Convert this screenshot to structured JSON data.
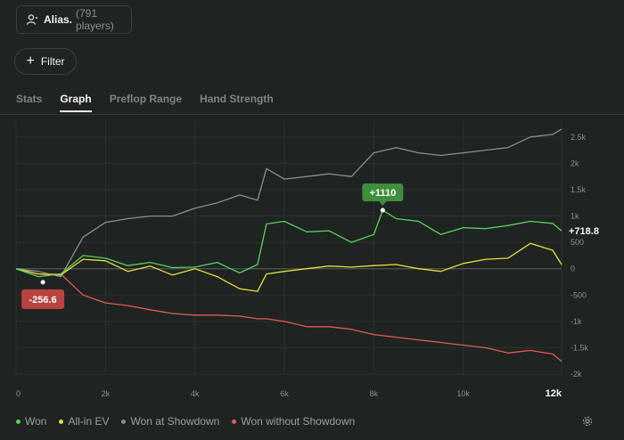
{
  "header": {
    "alias_name": "Alias.",
    "alias_count": "(791 players)",
    "filter_label": "Filter"
  },
  "tabs": [
    {
      "label": "Stats",
      "active": false
    },
    {
      "label": "Graph",
      "active": true
    },
    {
      "label": "Preflop Range",
      "active": false
    },
    {
      "label": "Hand Strength",
      "active": false
    }
  ],
  "legend": [
    {
      "label": "Won",
      "color": "#5ad25a"
    },
    {
      "label": "All-in EV",
      "color": "#e5df3a"
    },
    {
      "label": "Won at Showdown",
      "color": "#8a8f8d"
    },
    {
      "label": "Won without Showdown",
      "color": "#e05a55"
    }
  ],
  "chart_data": {
    "type": "line",
    "xlabel": "",
    "ylabel": "",
    "xlim": [
      0,
      12200
    ],
    "ylim": [
      -2000,
      2700
    ],
    "x_ticks": [
      {
        "value": 0,
        "label": "0"
      },
      {
        "value": 2000,
        "label": "2k"
      },
      {
        "value": 4000,
        "label": "4k"
      },
      {
        "value": 6000,
        "label": "6k"
      },
      {
        "value": 8000,
        "label": "8k"
      },
      {
        "value": 10000,
        "label": "10k"
      },
      {
        "value": 12200,
        "label": "12k"
      }
    ],
    "y_ticks": [
      {
        "value": 2500,
        "label": "2.5k"
      },
      {
        "value": 2000,
        "label": "2k"
      },
      {
        "value": 1500,
        "label": "1.5k"
      },
      {
        "value": 1000,
        "label": "1k"
      },
      {
        "value": 500,
        "label": "500"
      },
      {
        "value": 0,
        "label": "0"
      },
      {
        "value": -500,
        "label": "-500"
      },
      {
        "value": -1000,
        "label": "-1k"
      },
      {
        "value": -1500,
        "label": "-1.5k"
      },
      {
        "value": -2000,
        "label": "-2k"
      }
    ],
    "grid": true,
    "legend_position": "bottom-left",
    "annotations": [
      {
        "label": "+1110",
        "x": 8200,
        "y": 1110,
        "color": "#3d8f3d"
      },
      {
        "label": "-256.6",
        "x": 600,
        "y": -256.6,
        "color": "#b8433f"
      },
      {
        "label": "+718.8",
        "x": 12200,
        "y": 718.8,
        "color": "transparent"
      }
    ],
    "series": [
      {
        "name": "Won",
        "color": "#5ad25a",
        "x": [
          0,
          500,
          1000,
          1500,
          2000,
          2500,
          3000,
          3500,
          4000,
          4500,
          5000,
          5400,
          5600,
          6000,
          6500,
          7000,
          7500,
          8000,
          8200,
          8500,
          9000,
          9500,
          10000,
          10500,
          11000,
          11500,
          12000,
          12200
        ],
        "y": [
          0,
          -150,
          -100,
          250,
          200,
          60,
          120,
          20,
          30,
          120,
          -80,
          80,
          850,
          900,
          700,
          720,
          500,
          650,
          1110,
          950,
          900,
          650,
          780,
          760,
          820,
          900,
          860,
          719
        ]
      },
      {
        "name": "All-in EV",
        "color": "#e5df3a",
        "x": [
          0,
          500,
          1000,
          1500,
          2000,
          2500,
          3000,
          3500,
          4000,
          4500,
          5000,
          5400,
          5600,
          6000,
          6500,
          7000,
          7500,
          8000,
          8500,
          9000,
          9500,
          10000,
          10500,
          11000,
          11500,
          12000,
          12200
        ],
        "y": [
          0,
          -100,
          -120,
          180,
          150,
          -50,
          50,
          -120,
          0,
          -150,
          -380,
          -430,
          -100,
          -50,
          0,
          50,
          30,
          60,
          80,
          0,
          -50,
          100,
          180,
          200,
          480,
          350,
          80
        ]
      },
      {
        "name": "Won at Showdown",
        "color": "#8a8f8d",
        "x": [
          0,
          500,
          1000,
          1500,
          2000,
          2500,
          3000,
          3500,
          4000,
          4500,
          5000,
          5400,
          5600,
          6000,
          6500,
          7000,
          7500,
          8000,
          8500,
          9000,
          9500,
          10000,
          10500,
          11000,
          11500,
          12000,
          12200
        ],
        "y": [
          0,
          -50,
          -150,
          600,
          880,
          950,
          1000,
          1000,
          1150,
          1250,
          1400,
          1300,
          1900,
          1700,
          1750,
          1800,
          1750,
          2200,
          2300,
          2200,
          2150,
          2200,
          2250,
          2300,
          2500,
          2550,
          2650
        ]
      },
      {
        "name": "Won without Showdown",
        "color": "#e05a55",
        "x": [
          0,
          500,
          1000,
          1500,
          2000,
          2500,
          3000,
          3500,
          4000,
          4500,
          5000,
          5400,
          5600,
          6000,
          6500,
          7000,
          7500,
          8000,
          8500,
          9000,
          9500,
          10000,
          10500,
          11000,
          11500,
          12000,
          12200
        ],
        "y": [
          0,
          -100,
          -100,
          -500,
          -650,
          -700,
          -780,
          -850,
          -880,
          -880,
          -900,
          -950,
          -950,
          -1000,
          -1100,
          -1100,
          -1150,
          -1250,
          -1300,
          -1350,
          -1400,
          -1450,
          -1500,
          -1600,
          -1550,
          -1620,
          -1760
        ]
      }
    ]
  }
}
